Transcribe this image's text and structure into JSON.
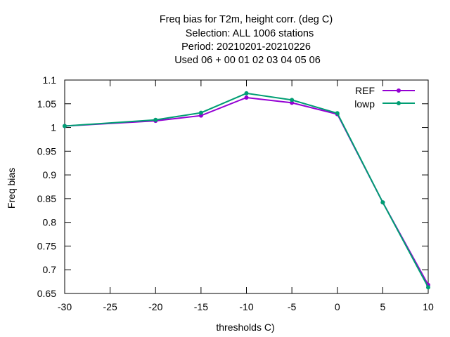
{
  "chart_data": {
    "type": "line",
    "title_lines": [
      "Freq bias  for T2m, height corr. (deg C)",
      "Selection: ALL   1006 stations",
      "Period: 20210201-20210226",
      "Used  06  + 00 01 02 03 04 05 06"
    ],
    "xlabel": "thresholds C)",
    "ylabel": "Freq bias",
    "xlim": [
      -30,
      10
    ],
    "ylim": [
      0.65,
      1.1
    ],
    "x_ticks": [
      -30,
      -25,
      -20,
      -15,
      -10,
      -5,
      0,
      5,
      10
    ],
    "y_ticks": [
      0.65,
      0.7,
      0.75,
      0.8,
      0.85,
      0.9,
      0.95,
      1,
      1.05,
      1.1
    ],
    "x_tick_labels": [
      "-30",
      "-25",
      "-20",
      "-15",
      "-10",
      "-5",
      "0",
      "5",
      "10"
    ],
    "y_tick_labels": [
      "0.65",
      "0.7",
      "0.75",
      "0.8",
      "0.85",
      "0.9",
      "0.95",
      "1",
      "1.05",
      "1.1"
    ],
    "grid": false,
    "legend_position": "top-right",
    "x": [
      -30,
      -20,
      -15,
      -10,
      -5,
      0,
      5,
      10
    ],
    "series": [
      {
        "name": "REF",
        "color": "#9400d3",
        "values": [
          1.003,
          1.014,
          1.025,
          1.063,
          1.052,
          1.028,
          0.842,
          0.668
        ]
      },
      {
        "name": "lowp",
        "color": "#009e73",
        "values": [
          1.003,
          1.016,
          1.031,
          1.072,
          1.058,
          1.03,
          0.842,
          0.663
        ]
      }
    ]
  }
}
